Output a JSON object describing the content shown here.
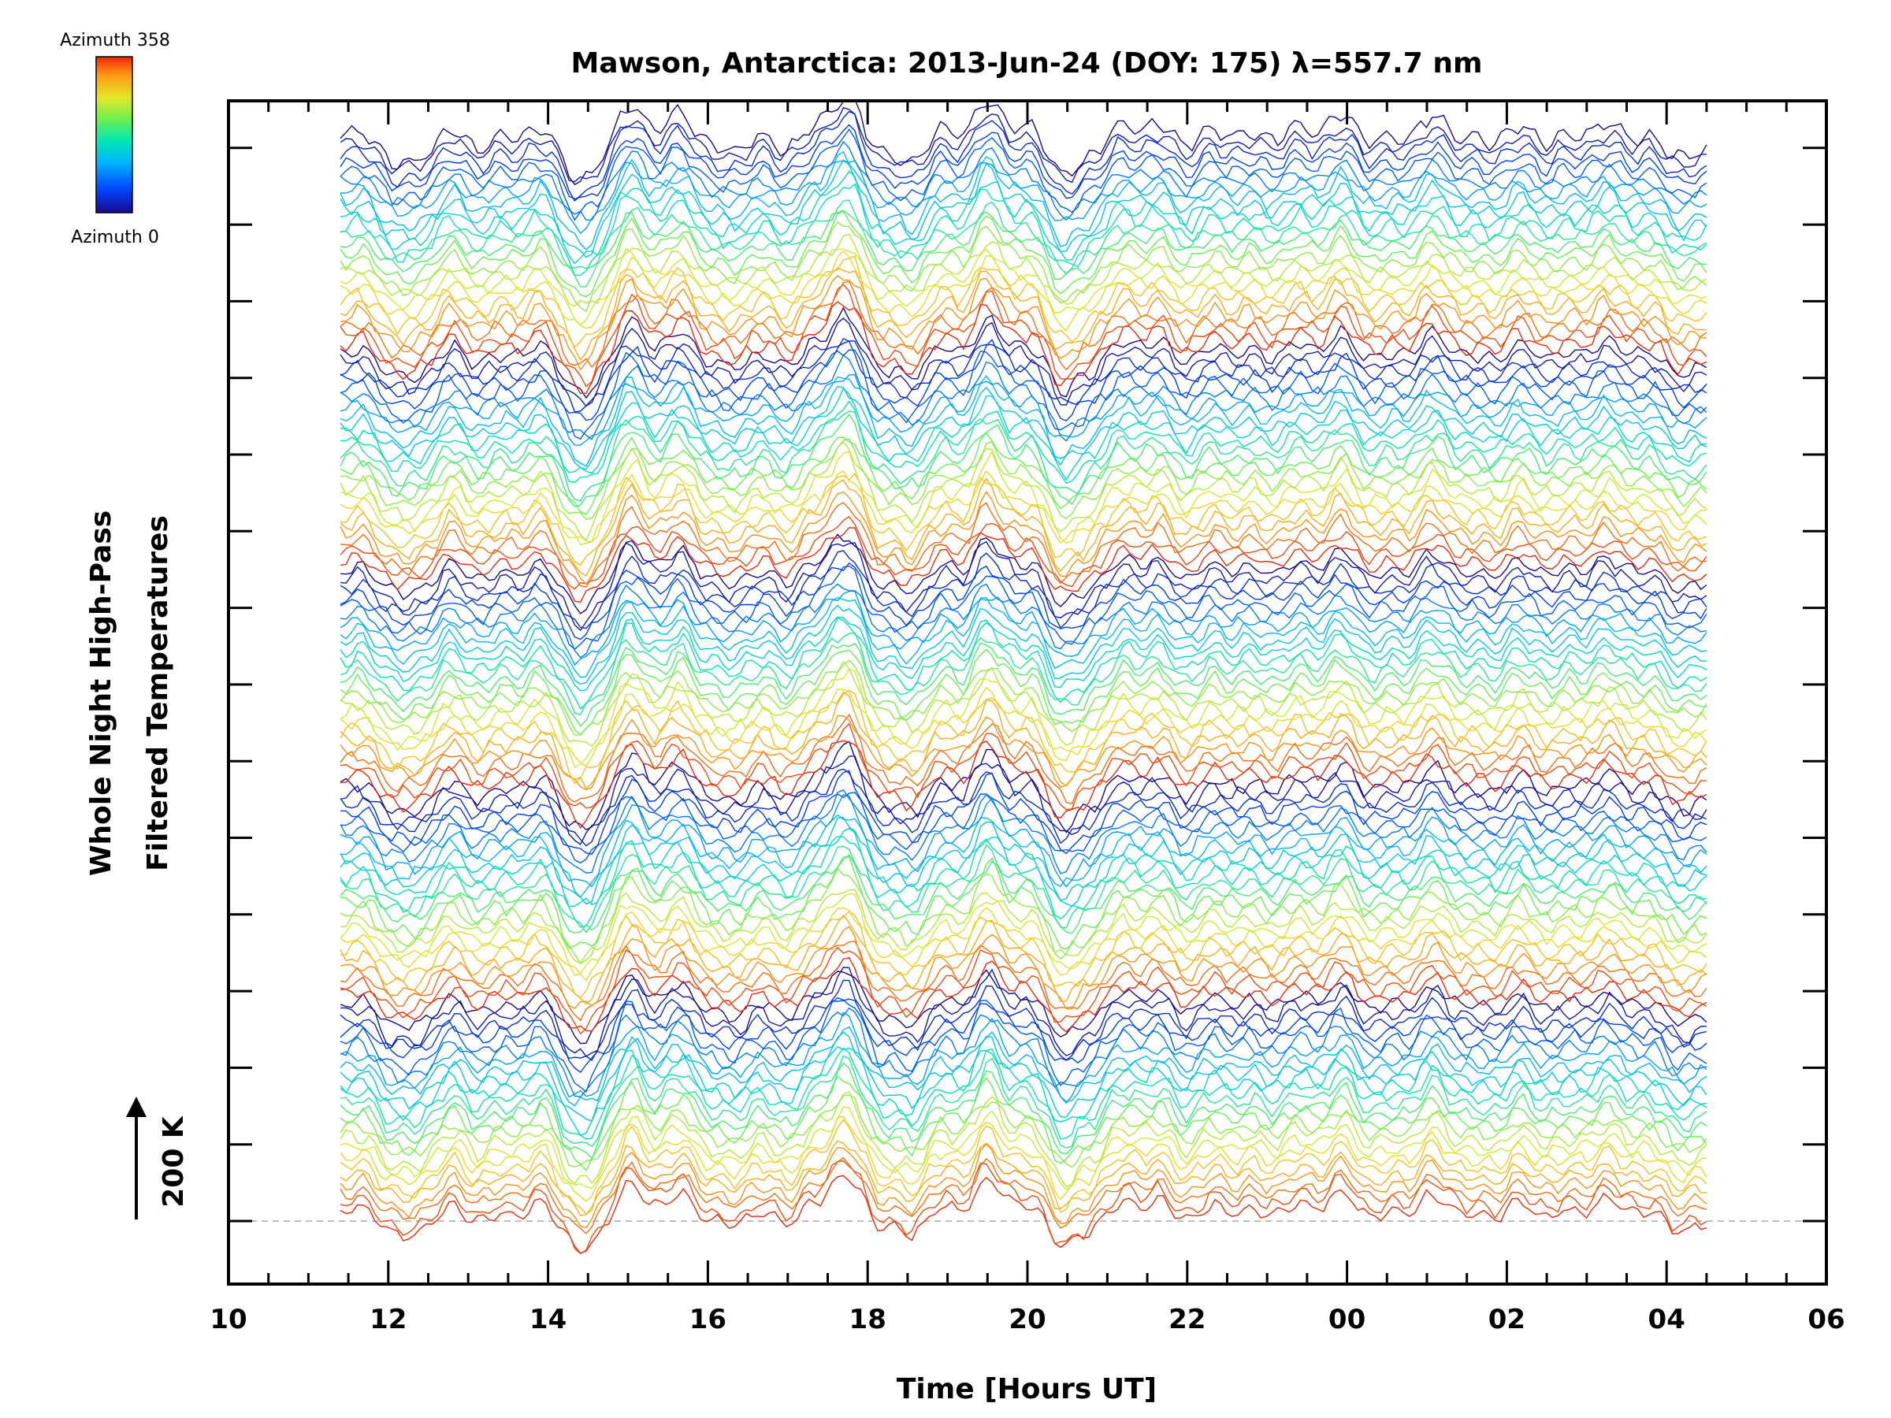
{
  "chart_data": {
    "type": "line",
    "title": "Mawson, Antarctica: 2013-Jun-24 (DOY: 175) λ=557.7 nm",
    "xlabel": "Time [Hours UT]",
    "ylabel_line1": "Whole Night High-Pass",
    "ylabel_line2": "Filtered Temperatures",
    "scale_bar_label": "200 K",
    "x_ticks": [
      "10",
      "12",
      "14",
      "16",
      "18",
      "20",
      "22",
      "00",
      "02",
      "04",
      "06"
    ],
    "xlim_hours_since_midnight_jun24": [
      10,
      30
    ],
    "data_time_range_hours": [
      11.4,
      28.5
    ],
    "colorbar": {
      "top_label": "Azimuth 358",
      "bottom_label": "Azimuth 0",
      "colormap": [
        "#1a0a8c",
        "#0044ff",
        "#00b4ff",
        "#00e6b4",
        "#6ef050",
        "#e6e628",
        "#ff9a14",
        "#f0280a"
      ]
    },
    "baseline_color": "#aaaaaa",
    "y_tick_count": 15,
    "series_count": 120,
    "note_values": "Stacked high-pass filtered temperature traces, one per azimuth (0-358), offset vertically; colour encodes azimuth."
  }
}
